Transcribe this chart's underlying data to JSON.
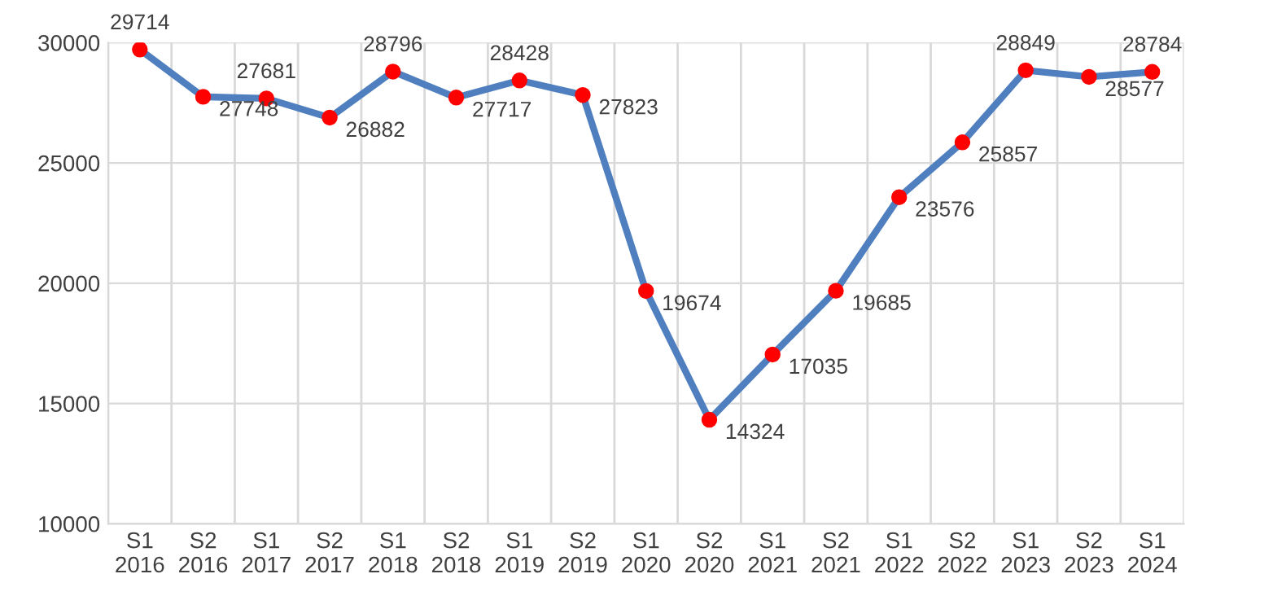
{
  "chart_data": {
    "type": "line",
    "categories": [
      "S1\n2016",
      "S2\n2016",
      "S1\n2017",
      "S2\n2017",
      "S1\n2018",
      "S2\n2018",
      "S1\n2019",
      "S2\n2019",
      "S1\n2020",
      "S2\n2020",
      "S1\n2021",
      "S2\n2021",
      "S1\n2022",
      "S2\n2022",
      "S1\n2023",
      "S2\n2023",
      "S1\n2024"
    ],
    "series": [
      {
        "color": "#4f7fbf",
        "colors": [
          "#ff0000",
          "#ff0000",
          "#ff0000",
          "#ff0000",
          "#ff0000",
          "#ff0000",
          "#ff0000",
          "#ff0000",
          "#ff0000",
          "#ff0000",
          "#ff0000",
          "#ff0000",
          "#ff0000",
          "#ff0000",
          "#ff0000",
          "#ff0000",
          "#ff0000"
        ],
        "values": [
          29714,
          27748,
          27681,
          26882,
          28796,
          27717,
          28428,
          27823,
          19674,
          14324,
          17035,
          19685,
          23576,
          25857,
          28849,
          28577,
          28784
        ]
      }
    ],
    "ylim": [
      10000,
      30000
    ],
    "yticks": [
      10000,
      15000,
      20000,
      25000,
      30000
    ],
    "grid": true,
    "marker": "circle",
    "line_style": "solid",
    "data_labels": true
  }
}
